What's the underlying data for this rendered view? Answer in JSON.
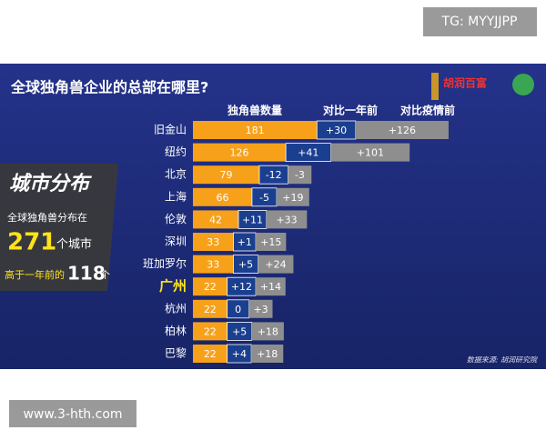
{
  "chart_data": {
    "type": "stacked-bar-h",
    "title": "全球独角兽企业的总部在哪里?",
    "categories": [
      "旧金山",
      "纽约",
      "北京",
      "上海",
      "伦敦",
      "深圳",
      "班加罗尔",
      "广州",
      "杭州",
      "柏林",
      "巴黎"
    ],
    "category_colors": [
      "#ffffff",
      "#ffffff",
      "#ffffff",
      "#ffffff",
      "#ffffff",
      "#ffffff",
      "#ffffff",
      "#ffe21a",
      "#ffffff",
      "#ffffff",
      "#ffffff"
    ],
    "series": [
      {
        "name": "独角兽数量",
        "color": "#f7a11a",
        "values": [
          181,
          126,
          79,
          66,
          42,
          33,
          33,
          22,
          22,
          22,
          22
        ]
      },
      {
        "name": "对比一年前",
        "color": "#1b3f8f",
        "values": [
          30,
          41,
          -12,
          -5,
          11,
          1,
          5,
          12,
          0,
          5,
          4
        ],
        "value_labels": [
          "+30",
          "+41",
          "-12",
          "-5",
          "+11",
          "+1",
          "+5",
          "+12",
          "0",
          "+5",
          "+4"
        ]
      },
      {
        "name": "对比疫情前",
        "color": "#8e8e8e",
        "values": [
          126,
          101,
          -3,
          19,
          33,
          15,
          24,
          14,
          3,
          18,
          18
        ],
        "value_labels": [
          "+126",
          "+101",
          "-3",
          "+19",
          "+33",
          "+15",
          "+24",
          "+14",
          "+3",
          "+18",
          "+18"
        ]
      }
    ],
    "side_panel": {
      "title": "城市分布",
      "line1": "全球独角兽分布在",
      "city_count": 271,
      "city_unit": "个城市",
      "line3_prefix": "高于一年前的",
      "increase": 118,
      "line3_suffix": "个"
    },
    "source": "数据来源: 胡润研究院",
    "logo_text": "胡润百富"
  },
  "watermarks": {
    "top": "TG: MYYJJPP",
    "bottom": "www.3-hth.com"
  }
}
